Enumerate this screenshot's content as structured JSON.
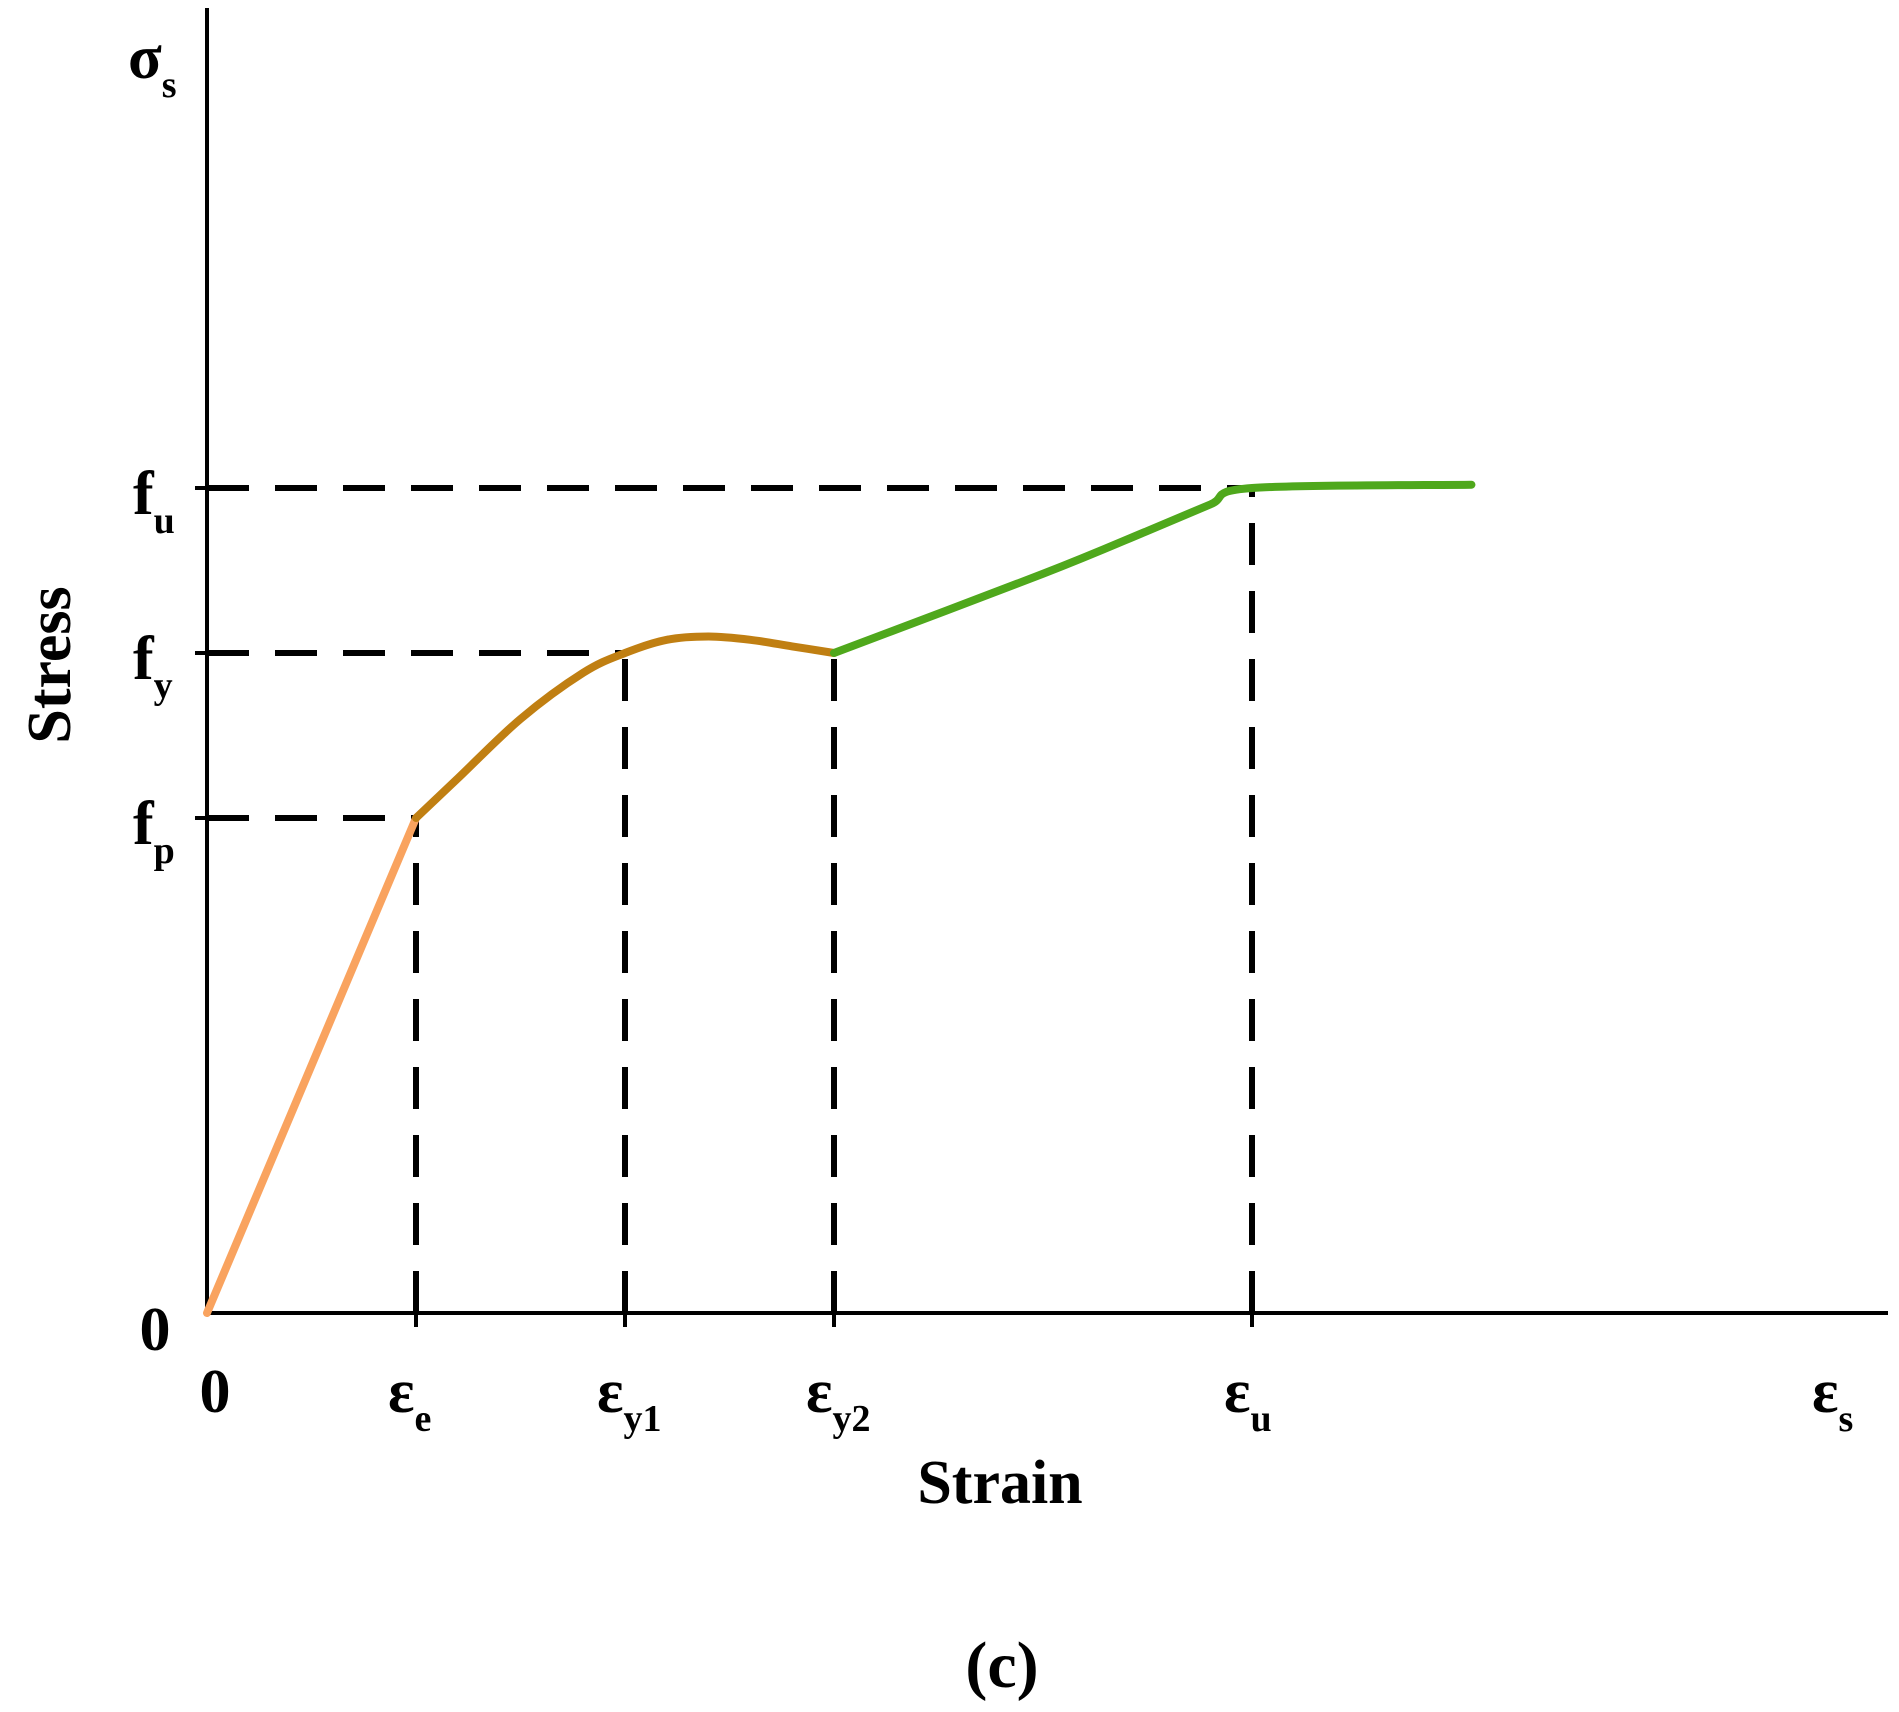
{
  "chart_data": {
    "type": "line",
    "title": "",
    "xlabel": "Strain",
    "ylabel": "Stress",
    "x_axis_symbol": {
      "main": "ε",
      "sub": "s"
    },
    "y_axis_symbol": {
      "main": "σ",
      "sub": "s"
    },
    "panel_label": "(c)",
    "xlim": [
      0,
      8
    ],
    "ylim": [
      0,
      5
    ],
    "grid": false,
    "legend": "none",
    "origin_labels": {
      "x": "0",
      "y": "0"
    },
    "x_ticks": [
      {
        "value": 1.0,
        "main": "ε",
        "sub": "e"
      },
      {
        "value": 2.0,
        "main": "ε",
        "sub": "y1"
      },
      {
        "value": 3.0,
        "main": "ε",
        "sub": "y2"
      },
      {
        "value": 5.0,
        "main": "ε",
        "sub": "u"
      }
    ],
    "y_ticks": [
      {
        "value": 1.5,
        "main": "f",
        "sub": "p"
      },
      {
        "value": 2.0,
        "main": "f",
        "sub": "y"
      },
      {
        "value": 2.5,
        "main": "f",
        "sub": "u"
      }
    ],
    "series": [
      {
        "color": "#F9A35F",
        "x": [
          0.0,
          1.0
        ],
        "y": [
          0.0,
          1.5
        ]
      },
      {
        "color": "#C07F12",
        "x": [
          1.0,
          1.2,
          1.5,
          1.8,
          2.0,
          2.2,
          2.4,
          2.6,
          2.8,
          3.0
        ],
        "y": [
          1.5,
          1.62,
          1.8,
          1.94,
          2.0,
          2.04,
          2.05,
          2.04,
          2.02,
          2.0
        ]
      },
      {
        "color": "#4FA81C",
        "x": [
          3.0,
          4.0,
          4.5,
          4.8,
          5.0,
          6.05
        ],
        "y": [
          2.0,
          2.24,
          2.37,
          2.45,
          2.5,
          2.51
        ]
      }
    ],
    "guide_lines": [
      {
        "from": [
          0,
          1.5
        ],
        "to": [
          1.0,
          1.5
        ]
      },
      {
        "from": [
          0,
          2.0
        ],
        "to": [
          2.0,
          2.0
        ]
      },
      {
        "from": [
          0,
          2.5
        ],
        "to": [
          5.0,
          2.5
        ]
      },
      {
        "from": [
          1.0,
          0
        ],
        "to": [
          1.0,
          1.5
        ]
      },
      {
        "from": [
          2.0,
          0
        ],
        "to": [
          2.0,
          2.0
        ]
      },
      {
        "from": [
          3.0,
          0
        ],
        "to": [
          3.0,
          2.0
        ]
      },
      {
        "from": [
          5.0,
          0
        ],
        "to": [
          5.0,
          2.5
        ]
      }
    ]
  }
}
